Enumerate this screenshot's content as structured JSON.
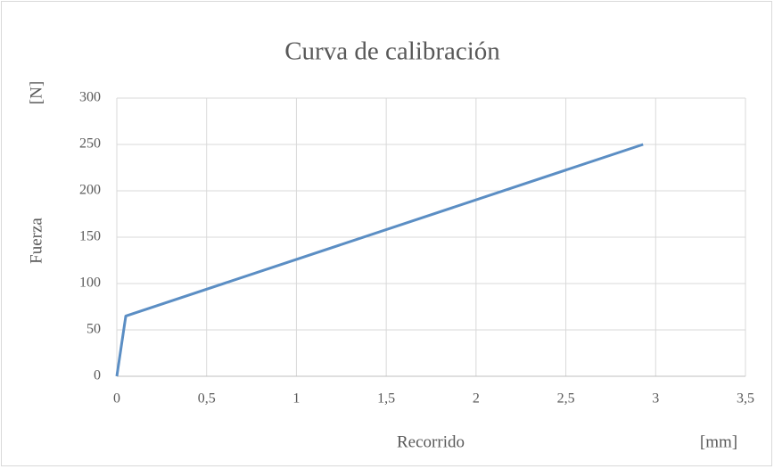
{
  "chart_data": {
    "type": "line",
    "title": "Curva de calibración",
    "y_label": "Fuerza",
    "y_unit": "[N]",
    "x_label": "Recorrido",
    "x_unit": "[mm]",
    "x": [
      0,
      0.05,
      2.93
    ],
    "series": [
      {
        "name": "Fuerza",
        "color": "#5b8ec4",
        "values": [
          0,
          65,
          250
        ]
      }
    ],
    "xlim": [
      0,
      3.5
    ],
    "xticks": [
      0,
      {
        "value": 0.5,
        "label": "0,5"
      },
      1,
      {
        "value": 1.5,
        "label": "1,5"
      },
      2,
      {
        "value": 2.5,
        "label": "2,5"
      },
      3,
      {
        "value": 3.5,
        "label": "3,5"
      }
    ],
    "ylim": [
      0,
      300
    ],
    "yticks": [
      0,
      50,
      100,
      150,
      200,
      250,
      300
    ],
    "grid": true,
    "legend": false
  }
}
